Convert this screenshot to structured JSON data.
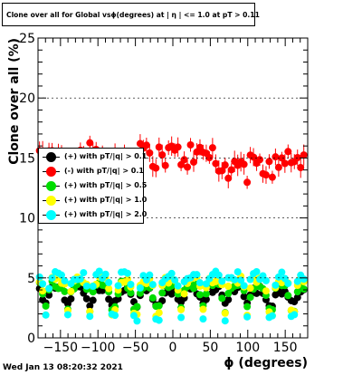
{
  "title": "Clone  over all for Global vsϕ(degrees) at | η | <= 1.0 at pT > 0.11",
  "timestamp": "Wed Jan 13 08:20:32 2021",
  "chart_data": {
    "type": "scatter",
    "xlabel": "ϕ (degrees)",
    "ylabel": "Clone  over all (%)",
    "xlim": [
      -180,
      180
    ],
    "ylim": [
      0,
      25
    ],
    "x_ticks": [
      -150,
      -100,
      -50,
      0,
      50,
      100,
      150
    ],
    "x_tick_labels": [
      "−150",
      "−100",
      "−50",
      "0",
      "50",
      "100",
      "150"
    ],
    "y_ticks": [
      0,
      5,
      10,
      15,
      20,
      25
    ],
    "y_tick_labels": [
      "0",
      "5",
      "10",
      "15",
      "20",
      "25"
    ],
    "legend_placement": "left",
    "series": [
      {
        "name": "(+) with pT/|q| > 0.1",
        "color": "#000000",
        "mean": 4.0,
        "spread": 0.35,
        "has_dips": true,
        "dip_low": 2.8
      },
      {
        "name": "(-) with pT/|q| > 0.1",
        "color": "#ff0000",
        "mean": 15.2,
        "spread": 0.6,
        "has_dips": false
      },
      {
        "name": "(+) with pT/|q| > 0.5",
        "color": "#00dd00",
        "mean": 4.4,
        "spread": 0.35,
        "has_dips": true,
        "dip_low": 2.4
      },
      {
        "name": "(+) with pT/|q| > 1.0",
        "color": "#ffff00",
        "mean": 4.8,
        "spread": 0.35,
        "has_dips": true,
        "dip_low": 2.1
      },
      {
        "name": "(+) with pT/|q| > 2.0",
        "color": "#00ffff",
        "mean": 5.2,
        "spread": 0.4,
        "has_dips": true,
        "dip_low": 1.7
      }
    ]
  }
}
